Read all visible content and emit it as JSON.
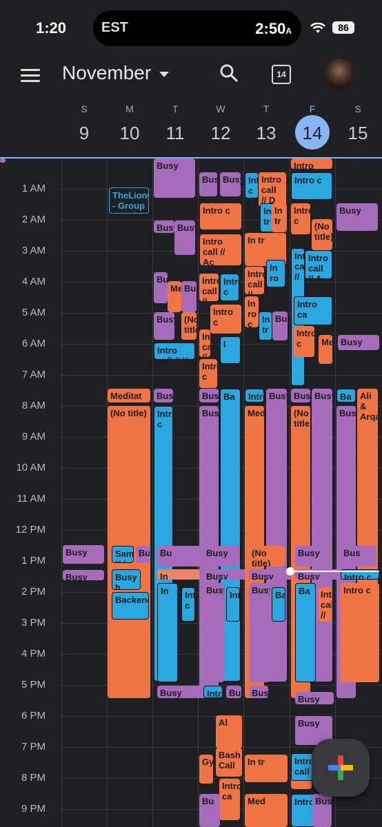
{
  "status": {
    "time": "1:20",
    "island_tz": "EST",
    "island_time": "2:50",
    "island_ampm": "A",
    "battery": "86"
  },
  "appbar": {
    "month": "November",
    "today_num": "14"
  },
  "days": [
    {
      "dow": "S",
      "num": "9"
    },
    {
      "dow": "M",
      "num": "10"
    },
    {
      "dow": "T",
      "num": "11"
    },
    {
      "dow": "W",
      "num": "12"
    },
    {
      "dow": "T",
      "num": "13"
    },
    {
      "dow": "F",
      "num": "14",
      "today": true
    },
    {
      "dow": "S",
      "num": "15"
    }
  ],
  "hours": [
    "1 AM",
    "2 AM",
    "3 AM",
    "4 AM",
    "5 AM",
    "6 AM",
    "7 AM",
    "8 AM",
    "9 AM",
    "10 AM",
    "11 AM",
    "12 PM",
    "1 PM",
    "2 PM",
    "3 PM",
    "4 PM",
    "5 PM",
    "6 PM",
    "7 PM",
    "8 PM",
    "9 PM"
  ],
  "colors": {
    "orange": "#f07444",
    "purple": "#a66cbb",
    "blue": "#2aa6e0",
    "today": "#8ab4f8"
  },
  "events": [
    {
      "t": "Busy",
      "c": "p"
    },
    {
      "t": "Busy",
      "c": "p"
    },
    {
      "t": "Busy",
      "c": "p"
    },
    {
      "t": "Busy",
      "c": "p"
    },
    {
      "t": "TheLionGlass - Group Coachi",
      "c": "ol"
    },
    {
      "t": "Meditat",
      "c": "o"
    },
    {
      "t": "(No title)",
      "c": "o"
    },
    {
      "t": "Sam X h",
      "c": "b"
    },
    {
      "t": "Bu",
      "c": "p"
    },
    {
      "t": "Busy h",
      "c": "b"
    },
    {
      "t": "Backend",
      "c": "b"
    },
    {
      "t": "Busy",
      "c": "p"
    },
    {
      "t": "Busy",
      "c": "p"
    },
    {
      "t": "Intro call // K",
      "c": "b"
    },
    {
      "t": "Busy",
      "c": "p"
    },
    {
      "t": "Intro c",
      "c": "b"
    },
    {
      "t": "Bu",
      "c": "p"
    },
    {
      "t": "In",
      "c": "s"
    },
    {
      "t": "In",
      "c": "b"
    },
    {
      "t": "Busy",
      "c": "p"
    },
    {
      "t": "Intro c",
      "c": "b"
    },
    {
      "t": "Busy",
      "c": "p"
    },
    {
      "t": "Med",
      "c": "o"
    },
    {
      "t": "Busy",
      "c": "p"
    },
    {
      "t": "(No title)",
      "c": "o"
    },
    {
      "t": "Busy",
      "c": "p"
    },
    {
      "t": "Busy",
      "c": "p"
    },
    {
      "t": "Busy",
      "c": "p"
    },
    {
      "t": "Ba",
      "c": "b"
    },
    {
      "t": "Busy",
      "c": "p"
    },
    {
      "t": "Busy",
      "c": "p"
    },
    {
      "t": "Busy",
      "c": "p"
    },
    {
      "t": "Intro c",
      "c": "b"
    },
    {
      "t": "Intro",
      "c": "b"
    },
    {
      "t": "Busy",
      "c": "p"
    },
    {
      "t": "Intro c",
      "c": "o"
    },
    {
      "t": "Intro call // Ac",
      "c": "o"
    },
    {
      "t": "Intro call // Ba",
      "c": "o"
    },
    {
      "t": "Intro c",
      "c": "b"
    },
    {
      "t": "Intro c",
      "c": "o"
    },
    {
      "t": "Intro call //",
      "c": "o"
    },
    {
      "t": "I",
      "c": "b"
    },
    {
      "t": "Intro c",
      "c": "o"
    },
    {
      "t": "Intro c",
      "c": "b"
    },
    {
      "t": "Med",
      "c": "o"
    },
    {
      "t": "Busy",
      "c": "p"
    },
    {
      "t": "(No title)",
      "c": "o"
    },
    {
      "t": "Busy",
      "c": "p"
    },
    {
      "t": "Busy",
      "c": "p"
    },
    {
      "t": "Busy",
      "c": "p"
    },
    {
      "t": "Ba",
      "c": "b"
    },
    {
      "t": "Bus",
      "c": "p"
    },
    {
      "t": "Al",
      "c": "o"
    },
    {
      "t": "Bash Call",
      "c": "o"
    },
    {
      "t": "Intro ca",
      "c": "o"
    },
    {
      "t": "Gym",
      "c": "o"
    },
    {
      "t": "Bu",
      "c": "p"
    },
    {
      "t": "Intro c",
      "c": "b"
    },
    {
      "t": "Intro call // D",
      "c": "o"
    },
    {
      "t": "In tr",
      "c": "b"
    },
    {
      "t": "In tr",
      "c": "o"
    },
    {
      "t": "In tr",
      "c": "o"
    },
    {
      "t": "Intro call // Ba",
      "c": "o"
    },
    {
      "t": "In ro c",
      "c": "b"
    },
    {
      "t": "In ro c",
      "c": "o"
    },
    {
      "t": "In tr",
      "c": "b"
    },
    {
      "t": "Bu",
      "c": "p"
    },
    {
      "t": "In tr",
      "c": "o"
    },
    {
      "t": "Med",
      "c": "o"
    },
    {
      "t": "Busy",
      "c": "p"
    },
    {
      "t": "(No title)",
      "c": "o"
    },
    {
      "t": "Busy",
      "c": "p"
    },
    {
      "t": "Busy",
      "c": "p"
    },
    {
      "t": "Busy",
      "c": "p"
    },
    {
      "t": "Ba",
      "c": "b"
    },
    {
      "t": "Busy",
      "c": "p"
    },
    {
      "t": "Intro call // Al",
      "c": "o"
    },
    {
      "t": "Intro ca",
      "c": "b"
    },
    {
      "t": "Intro call // De",
      "c": "o"
    },
    {
      "t": "Intro c",
      "c": "b"
    },
    {
      "t": "Intro c",
      "c": "o"
    },
    {
      "t": "(No title)",
      "c": "o"
    },
    {
      "t": "Intro call //",
      "c": "b"
    },
    {
      "t": "Intro call // A",
      "c": "b"
    },
    {
      "t": "Intro ca",
      "c": "b"
    },
    {
      "t": "Intro c",
      "c": "o"
    },
    {
      "t": "Med",
      "c": "o"
    },
    {
      "t": "Busy",
      "c": "p"
    },
    {
      "t": "(No title)",
      "c": "o"
    },
    {
      "t": "Busy",
      "c": "p"
    },
    {
      "t": "Busy",
      "c": "p"
    },
    {
      "t": "Busy",
      "c": "p"
    },
    {
      "t": "Ba",
      "c": "b"
    },
    {
      "t": "Busy",
      "c": "p"
    },
    {
      "t": "Ali & Arqam",
      "c": "o"
    },
    {
      "t": "Bus",
      "c": "p"
    },
    {
      "t": "Intro c",
      "c": "b"
    },
    {
      "t": "Intro c",
      "c": "o"
    },
    {
      "t": "Intro call // T",
      "c": "b"
    },
    {
      "t": "Intro ca",
      "c": "o"
    },
    {
      "t": "Med",
      "c": "o"
    },
    {
      "t": "Busy",
      "c": "p"
    },
    {
      "t": "(No title)",
      "c": "o"
    },
    {
      "t": "Busy",
      "c": "p"
    },
    {
      "t": "Busy",
      "c": "p"
    },
    {
      "t": "Busy",
      "c": "p"
    }
  ]
}
